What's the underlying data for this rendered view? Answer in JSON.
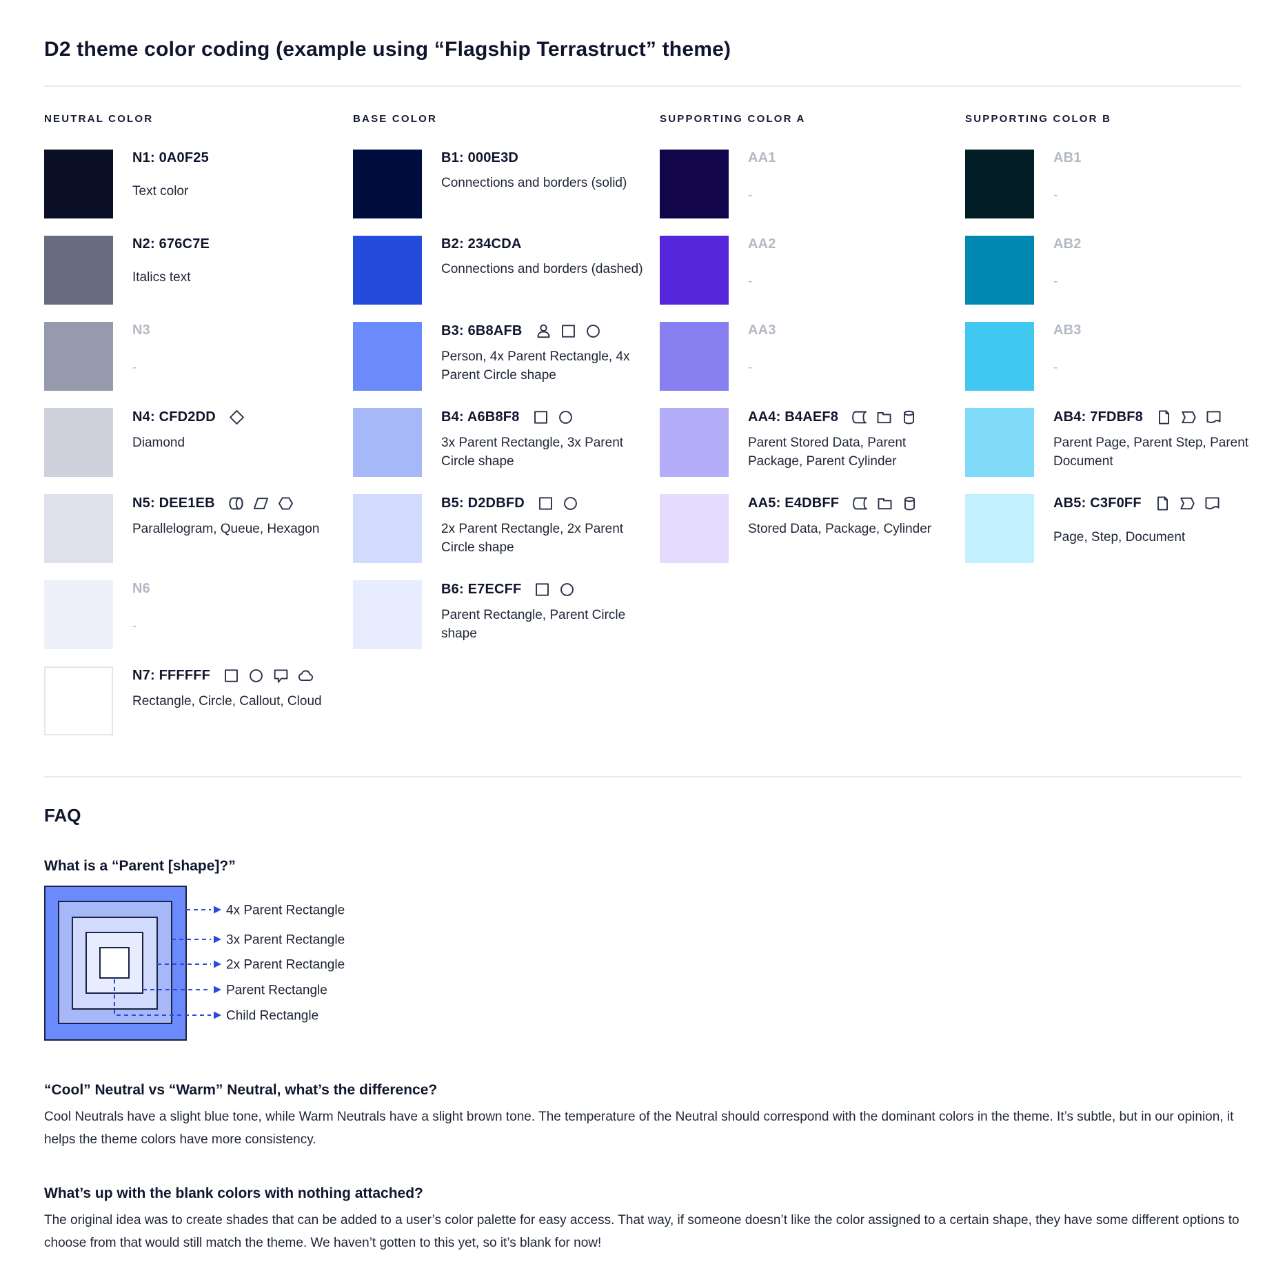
{
  "title": "D2 theme color coding (example using “Flagship Terrastruct” theme)",
  "palette": {
    "columns": [
      {
        "header": "NEUTRAL COLOR",
        "entries": [
          {
            "name": "N1: 0A0F25",
            "color": "#0A0F25",
            "desc": "Text color",
            "gap": "lg"
          },
          {
            "name": "N2: 676C7E",
            "color": "#676C7E",
            "desc": "Italics text",
            "gap": "lg"
          },
          {
            "name": "N3",
            "color": "#959BAD",
            "desc": "-",
            "muted": true
          },
          {
            "name": "N4: CFD2DD",
            "color": "#CFD2DD",
            "desc": "Diamond",
            "icons": [
              "diamond"
            ]
          },
          {
            "name": "N5: DEE1EB",
            "color": "#DEE1EB",
            "desc": "Parallelogram, Queue, Hexagon",
            "icons": [
              "queue",
              "parallelogram",
              "hexagon"
            ]
          },
          {
            "name": "N6",
            "color": "#EDF0F8",
            "desc": "-",
            "muted": true
          },
          {
            "name": "N7: FFFFFF",
            "color": "#FFFFFF",
            "desc": "Rectangle, Circle, Callout, Cloud",
            "icons": [
              "rectangle",
              "circle",
              "callout",
              "cloud"
            ],
            "border": true
          }
        ]
      },
      {
        "header": "BASE COLOR",
        "entries": [
          {
            "name": "B1: 000E3D",
            "color": "#000E3D",
            "desc": "Connections and borders (solid)"
          },
          {
            "name": "B2: 234CDA",
            "color": "#234CDA",
            "desc": "Connections and borders (dashed)"
          },
          {
            "name": "B3: 6B8AFB",
            "color": "#6B8AFB",
            "desc": "Person, 4x Parent Rectangle, 4x Parent Circle shape",
            "icons": [
              "person",
              "rectangle",
              "circle"
            ]
          },
          {
            "name": "B4: A6B8F8",
            "color": "#A6B8F8",
            "desc": "3x Parent Rectangle, 3x Parent Circle shape",
            "icons": [
              "rectangle",
              "circle"
            ]
          },
          {
            "name": "B5: D2DBFD",
            "color": "#D2DBFD",
            "desc": "2x Parent Rectangle, 2x Parent Circle shape",
            "icons": [
              "rectangle",
              "circle"
            ]
          },
          {
            "name": "B6: E7ECFF",
            "color": "#E7ECFF",
            "desc": "Parent Rectangle, Parent Circle shape",
            "icons": [
              "rectangle",
              "circle"
            ]
          }
        ]
      },
      {
        "header": "SUPPORTING COLOR A",
        "entries": [
          {
            "name": "AA1",
            "color": "#120549",
            "desc": "-",
            "muted": true
          },
          {
            "name": "AA2",
            "color": "#5326DB",
            "desc": "-",
            "muted": true
          },
          {
            "name": "AA3",
            "color": "#8880F0",
            "desc": "-",
            "muted": true
          },
          {
            "name": "AA4: B4AEF8",
            "color": "#B4AEF8",
            "desc": "Parent Stored Data, Parent Package,  Parent Cylinder",
            "icons": [
              "stored-data",
              "package",
              "cylinder"
            ]
          },
          {
            "name": "AA5: E4DBFF",
            "color": "#E4DBFF",
            "desc": "Stored Data, Package, Cylinder",
            "icons": [
              "stored-data",
              "package",
              "cylinder"
            ]
          }
        ]
      },
      {
        "header": "SUPPORTING COLOR B",
        "entries": [
          {
            "name": "AB1",
            "color": "#031D27",
            "desc": "-",
            "muted": true
          },
          {
            "name": "AB2",
            "color": "#0289B2",
            "desc": "-",
            "muted": true
          },
          {
            "name": "AB3",
            "color": "#40C8F0",
            "desc": "-",
            "muted": true
          },
          {
            "name": "AB4: 7FDBF8",
            "color": "#7FDBF8",
            "desc": "Parent Page, Parent Step, Parent Document",
            "icons": [
              "page",
              "step",
              "document"
            ]
          },
          {
            "name": "AB5: C3F0FF",
            "color": "#C3F0FF",
            "desc": "Page, Step, Document",
            "icons": [
              "page",
              "step",
              "document"
            ],
            "gap": "lg"
          }
        ]
      }
    ]
  },
  "faq": {
    "title": "FAQ",
    "q1": "What is a “Parent [shape]?”",
    "diagram": {
      "layers": [
        {
          "label": "4x Parent Rectangle",
          "color": "#6B8AFB"
        },
        {
          "label": "3x Parent Rectangle",
          "color": "#A6B8F8"
        },
        {
          "label": "2x Parent Rectangle",
          "color": "#D2DBFD"
        },
        {
          "label": "Parent Rectangle",
          "color": "#E7ECFF"
        },
        {
          "label": "Child Rectangle",
          "color": "#FFFFFF"
        }
      ],
      "arrow_color": "#2B49E0",
      "border_color": "#1C2340",
      "label_color": "#1B2233"
    },
    "q2": "“Cool” Neutral vs “Warm” Neutral, what’s the difference?",
    "a2": "Cool Neutrals have a slight blue tone, while Warm Neutrals have a slight brown tone. The temperature of the Neutral should correspond with the dominant colors in the theme. It’s subtle, but in our opinion, it helps the theme colors have more consistency.",
    "q3": "What’s up with the blank colors with nothing attached?",
    "a3": "The original idea was to create shades that can be added to a user’s color palette for easy access. That way, if someone doesn’t like the color assigned to a certain shape, they have some different options to choose from that would still match the theme. We haven’t gotten to this yet, so it’s blank for now!"
  }
}
